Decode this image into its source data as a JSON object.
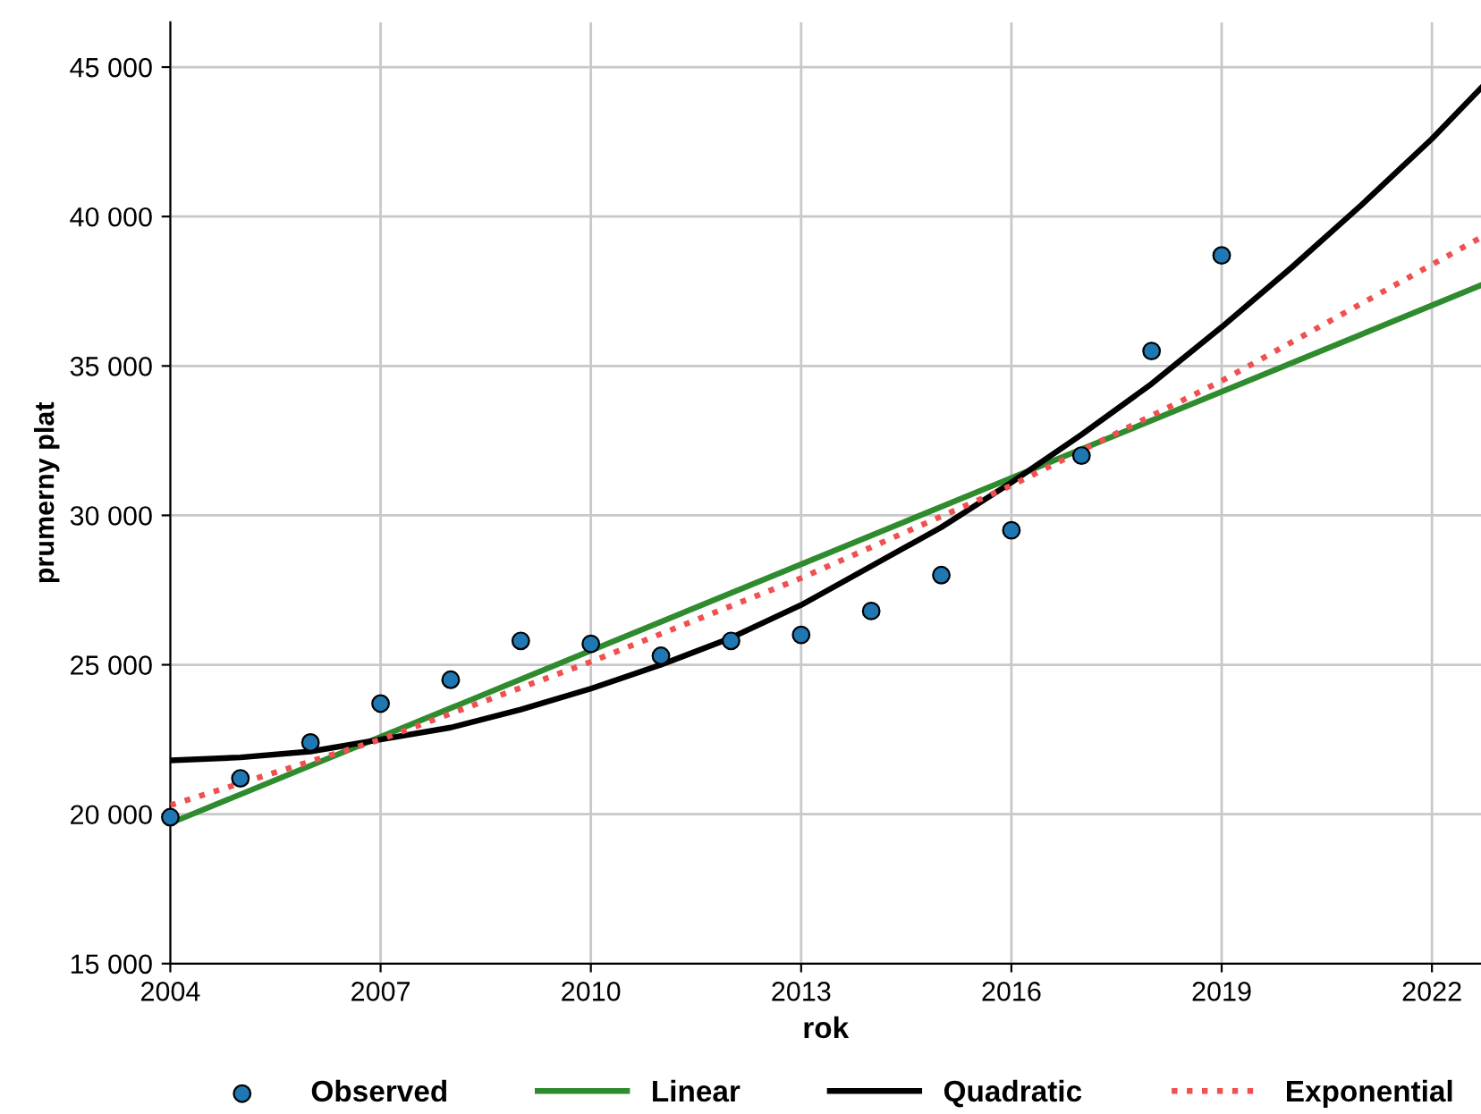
{
  "chart_data": {
    "type": "scatter",
    "xlabel": "rok",
    "ylabel": "prumerny plat",
    "xlim": [
      2004,
      2022.7
    ],
    "xticks": [
      2004,
      2007,
      2010,
      2013,
      2016,
      2019,
      2022
    ],
    "ylim": [
      15000,
      46500
    ],
    "yticks": [
      {
        "value": 15000,
        "label": "15 000"
      },
      {
        "value": 20000,
        "label": "20 000"
      },
      {
        "value": 25000,
        "label": "25 000"
      },
      {
        "value": 30000,
        "label": "30 000"
      },
      {
        "value": 35000,
        "label": "35 000"
      },
      {
        "value": 40000,
        "label": "40 000"
      },
      {
        "value": 45000,
        "label": "45 000"
      }
    ],
    "grid": true,
    "legend": "bottom",
    "series": [
      {
        "name": "Observed",
        "marker": "circle",
        "color": "#1f77b4",
        "x": [
          2004,
          2005,
          2006,
          2007,
          2008,
          2009,
          2010,
          2011,
          2012,
          2013,
          2014,
          2015,
          2016,
          2017,
          2018,
          2019
        ],
        "values": [
          19900,
          21200,
          22400,
          23700,
          24500,
          25800,
          25700,
          25300,
          25800,
          26000,
          26800,
          28000,
          29500,
          32000,
          35500,
          38700
        ]
      },
      {
        "name": "Linear",
        "type": "line",
        "line_style": "solid",
        "color": "#2e8b2e",
        "x": [
          2004,
          2022.7
        ],
        "values": [
          19700,
          37700
        ]
      },
      {
        "name": "Quadratic",
        "type": "line",
        "line_style": "solid",
        "color": "#000000",
        "x": [
          2004,
          2005,
          2006,
          2007,
          2008,
          2009,
          2010,
          2011,
          2012,
          2013,
          2014,
          2015,
          2016,
          2017,
          2018,
          2019,
          2020,
          2021,
          2022,
          2022.7
        ],
        "values": [
          21800,
          21900,
          22100,
          22500,
          22900,
          23500,
          24200,
          25000,
          25900,
          27000,
          28300,
          29600,
          31100,
          32700,
          34400,
          36300,
          38300,
          40400,
          42600,
          44300
        ]
      },
      {
        "name": "Exponential",
        "type": "line",
        "line_style": "dotted",
        "color": "#f05050",
        "x": [
          2004,
          2007,
          2010,
          2013,
          2016,
          2019,
          2022.7
        ],
        "values": [
          20300,
          22500,
          25100,
          27900,
          31000,
          34500,
          39300
        ]
      }
    ]
  }
}
